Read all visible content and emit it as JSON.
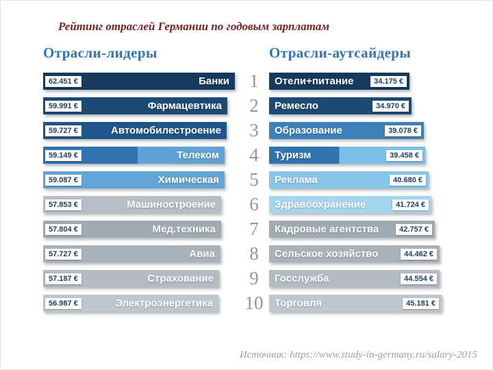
{
  "chart_data": {
    "type": "bar",
    "title": "Рейтинг отраслей Германии по годовым зарплатам",
    "source": "Источник: https://www.study-in-germany.ru/salary-2015",
    "ranks": [
      "1",
      "2",
      "3",
      "4",
      "5",
      "6",
      "7",
      "8",
      "9",
      "10"
    ],
    "leaders": {
      "header": "Отрасли-лидеры",
      "rows": [
        {
          "label": "Банки",
          "value": 62451,
          "value_text": "62.451 €",
          "color": "#16395f"
        },
        {
          "label": "Фармацевтика",
          "value": 59991,
          "value_text": "59.991 €",
          "color": "#1c4a77"
        },
        {
          "label": "Автомобилестроение",
          "value": 59727,
          "value_text": "59.727 €",
          "color": "#1f568a"
        },
        {
          "label": "Телеком",
          "value": 59149,
          "value_text": "59.149 €",
          "color": "#2f74b0",
          "color2": "#5fa3d6"
        },
        {
          "label": "Химическая",
          "value": 59087,
          "value_text": "59.087 €",
          "color": "#63a5d6"
        },
        {
          "label": "Машиностроение",
          "value": 57853,
          "value_text": "57.853 €",
          "color": "#b7bec5"
        },
        {
          "label": "Мед.техника",
          "value": 57804,
          "value_text": "57.804 €",
          "color": "#a2aab2"
        },
        {
          "label": "Авиа",
          "value": 57727,
          "value_text": "57.727 €",
          "color": "#aab2b9"
        },
        {
          "label": "Страхование",
          "value": 57187,
          "value_text": "57.187 €",
          "color": "#b4bbc2"
        },
        {
          "label": "Электроэнергетика",
          "value": 56987,
          "value_text": "56.987 €",
          "color": "#bfc6cc"
        }
      ]
    },
    "outsiders": {
      "header": "Отрасли-аутсайдеры",
      "rows": [
        {
          "label": "Отели+питание",
          "value": 34175,
          "value_text": "34.175 €",
          "color": "#16395f"
        },
        {
          "label": "Ремесло",
          "value": 34970,
          "value_text": "34.970 €",
          "color": "#1c4a77"
        },
        {
          "label": "Образование",
          "value": 39078,
          "value_text": "39.078 €",
          "color": "#3f80ba"
        },
        {
          "label": "Туризм",
          "value": 39458,
          "value_text": "39.458 €",
          "color": "#2f74b0",
          "color2": "#7cc0ea"
        },
        {
          "label": "Реклама",
          "value": 40680,
          "value_text": "40.680 €",
          "color": "#87c6ea"
        },
        {
          "label": "Здравоохранение",
          "value": 41724,
          "value_text": "41.724 €",
          "color": "#a5d6f0"
        },
        {
          "label": "Кадровые агентства",
          "value": 42757,
          "value_text": "42.757 €",
          "color": "#a2aab2"
        },
        {
          "label": "Сельское хозяйство",
          "value": 44462,
          "value_text": "44.462 €",
          "color": "#aab2b9"
        },
        {
          "label": "Госслужба",
          "value": 44554,
          "value_text": "44.554 €",
          "color": "#b4bbc2"
        },
        {
          "label": "Торговля",
          "value": 45181,
          "value_text": "45.181 €",
          "color": "#bfc6cc"
        }
      ]
    },
    "layout_hints": {
      "legend": "none",
      "grid": "off",
      "orientation": "horizontal paired bars with center rank column"
    }
  },
  "style": {
    "title_color": "#7a2020",
    "header_color": "#2d74b8",
    "rank_color": "#8f959b",
    "source_color": "#9aa0a6"
  }
}
